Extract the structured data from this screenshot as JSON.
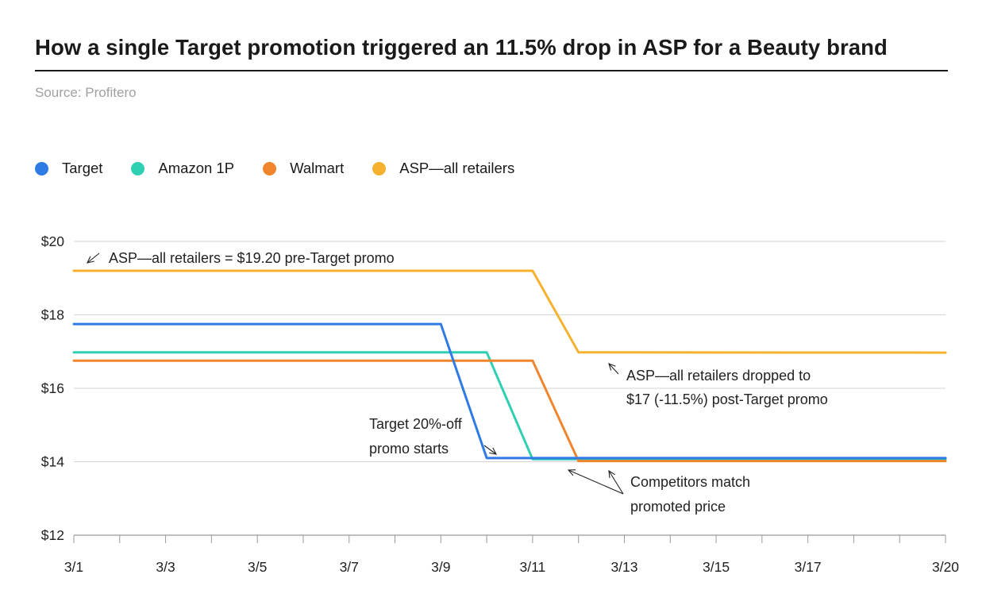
{
  "title": "How a single Target promotion triggered an 11.5% drop in ASP for a Beauty brand",
  "source": "Source: Profitero",
  "colors": {
    "target": "#2f7be6",
    "amazon": "#2fcfb3",
    "walmart": "#f1852d",
    "asp": "#f6b12e",
    "grid": "#d3d3d3",
    "axis": "#9a9a9a",
    "annotation": "#222222"
  },
  "chart_data": {
    "type": "line",
    "title": "How a single Target promotion triggered an 11.5% drop in ASP for a Beauty brand",
    "xlabel": "",
    "ylabel": "",
    "ylim": [
      12,
      20
    ],
    "yticks": [
      12,
      14,
      16,
      18,
      20
    ],
    "ytick_labels": [
      "$12",
      "$14",
      "$16",
      "$18",
      "$20"
    ],
    "xlim": [
      1,
      20
    ],
    "xticks": [
      1,
      3,
      5,
      7,
      9,
      11,
      13,
      15,
      17,
      20
    ],
    "xtick_labels": [
      "3/1",
      "3/3",
      "3/5",
      "3/7",
      "3/9",
      "3/11",
      "3/13",
      "3/15",
      "3/17",
      "3/20"
    ],
    "grid": true,
    "legend_position": "top-left",
    "series": [
      {
        "name": "Target",
        "color": "#2f7be6",
        "x": [
          1,
          9,
          10,
          20
        ],
        "y": [
          17.75,
          17.75,
          14.1,
          14.1
        ]
      },
      {
        "name": "Amazon 1P",
        "color": "#2fcfb3",
        "x": [
          1,
          10,
          11,
          20
        ],
        "y": [
          16.98,
          16.98,
          14.07,
          14.07
        ]
      },
      {
        "name": "Walmart",
        "color": "#f1852d",
        "x": [
          1,
          11,
          12,
          20
        ],
        "y": [
          16.75,
          16.75,
          14.02,
          14.02
        ]
      },
      {
        "name": "ASP—all retailers",
        "color": "#f6b12e",
        "x": [
          1,
          11,
          12,
          20
        ],
        "y": [
          19.2,
          19.2,
          16.98,
          16.97
        ]
      }
    ],
    "annotations": [
      {
        "lines": [
          "ASP—all retailers = $19.20 pre-Target promo"
        ]
      },
      {
        "lines": [
          "ASP—all retailers dropped to",
          "$17 (-11.5%) post-Target promo"
        ]
      },
      {
        "lines": [
          "Target 20%-off",
          "promo starts"
        ]
      },
      {
        "lines": [
          "Competitors match",
          "promoted price"
        ]
      }
    ]
  }
}
